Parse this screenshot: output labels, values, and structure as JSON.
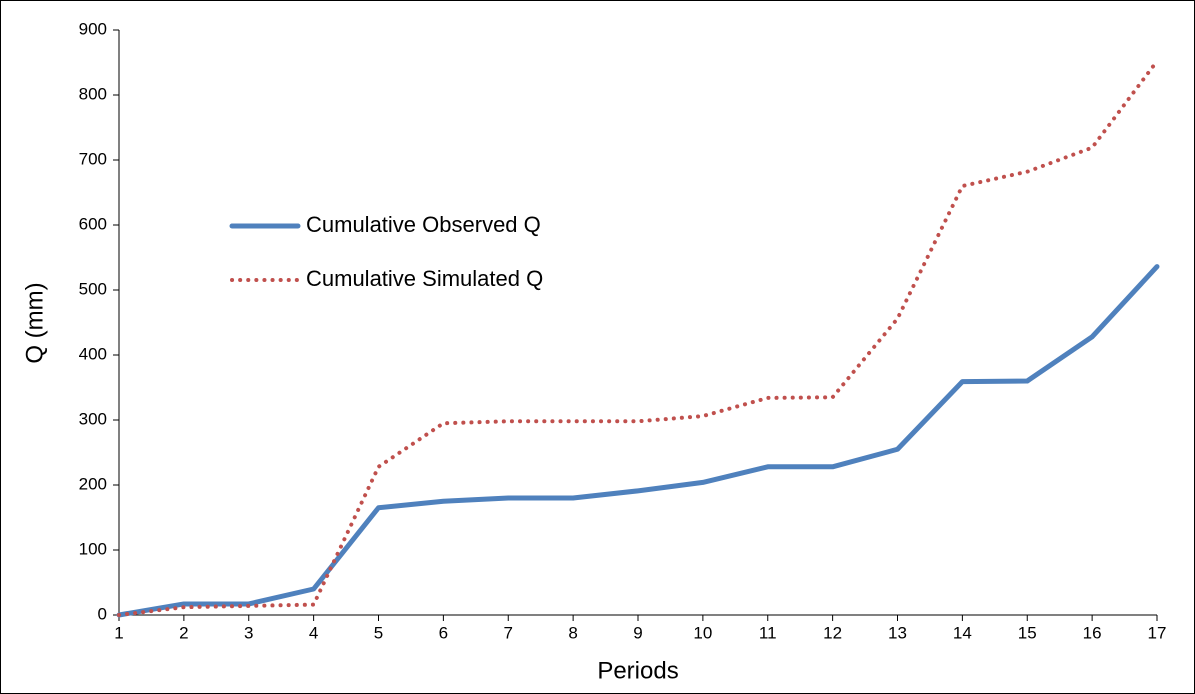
{
  "chart_data": {
    "type": "line",
    "x_label": "Periods",
    "y_label": "Q (mm)",
    "x": [
      1,
      2,
      3,
      4,
      5,
      6,
      7,
      8,
      9,
      10,
      11,
      12,
      13,
      14,
      15,
      16,
      17
    ],
    "xlim": [
      1,
      17
    ],
    "xticks": [
      1,
      2,
      3,
      4,
      5,
      6,
      7,
      8,
      9,
      10,
      11,
      12,
      13,
      14,
      15,
      16,
      17
    ],
    "ylim": [
      0,
      900
    ],
    "yticks": [
      0,
      100,
      200,
      300,
      400,
      500,
      600,
      700,
      800,
      900
    ],
    "grid": false,
    "legend": "center-left",
    "series": [
      {
        "name": "Cumulative Observed Q",
        "color": "#4f81bd",
        "style": "solid",
        "values": [
          0,
          17,
          17,
          40,
          165,
          175,
          180,
          180,
          191,
          204,
          228,
          228,
          255,
          359,
          360,
          428,
          536
        ]
      },
      {
        "name": "Cumulative Simulated Q",
        "color": "#c0504d",
        "style": "dotted",
        "values": [
          0,
          12,
          14,
          16,
          228,
          295,
          298,
          298,
          298,
          306,
          334,
          335,
          456,
          660,
          682,
          719,
          852
        ]
      }
    ]
  }
}
